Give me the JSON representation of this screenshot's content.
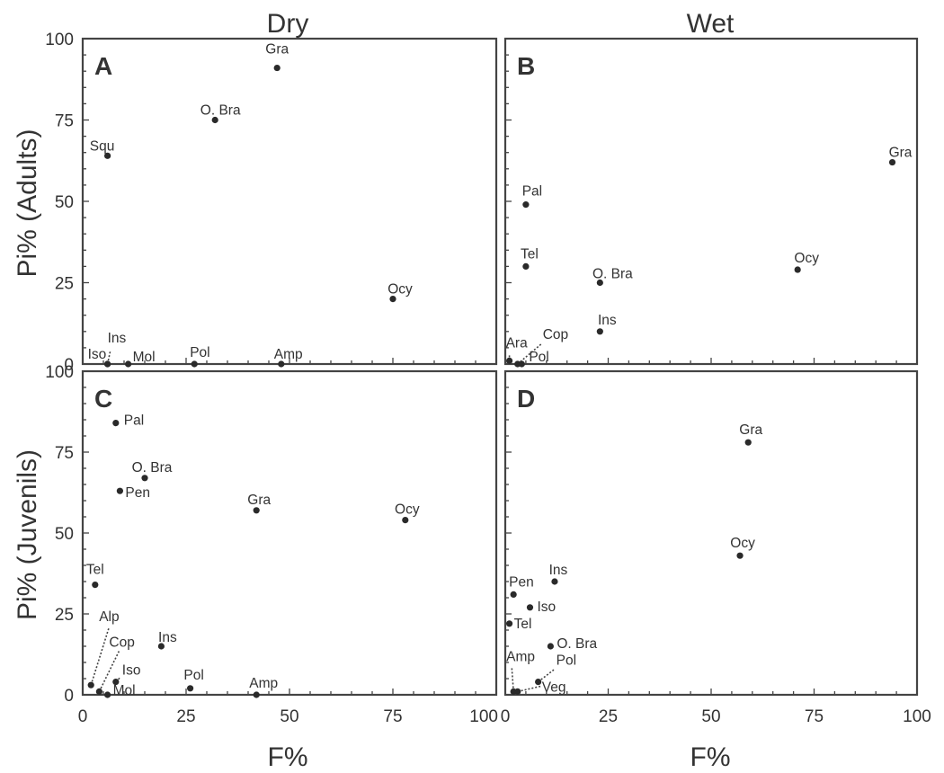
{
  "columns": [
    "Dry",
    "Wet"
  ],
  "row_labels": [
    "Pi% (Adults)",
    "Pi% (Juvenils)"
  ],
  "x_axis_label": "F%",
  "chart_data": [
    {
      "panel": "A",
      "type": "scatter",
      "xlim": [
        0,
        100
      ],
      "ylim": [
        0,
        100
      ],
      "points": [
        {
          "label": "Gra",
          "x": 47,
          "y": 91
        },
        {
          "label": "O. Bra",
          "x": 32,
          "y": 75
        },
        {
          "label": "Squ",
          "x": 6,
          "y": 64
        },
        {
          "label": "Ocy",
          "x": 75,
          "y": 20
        },
        {
          "label": "Iso",
          "x": 6,
          "y": 0
        },
        {
          "label": "Ins",
          "x": 6,
          "y": 0
        },
        {
          "label": "Mol",
          "x": 11,
          "y": 0
        },
        {
          "label": "Pol",
          "x": 27,
          "y": 0
        },
        {
          "label": "Amp",
          "x": 48,
          "y": 0
        }
      ]
    },
    {
      "panel": "B",
      "type": "scatter",
      "xlim": [
        0,
        100
      ],
      "ylim": [
        0,
        100
      ],
      "points": [
        {
          "label": "Gra",
          "x": 94,
          "y": 62
        },
        {
          "label": "Pal",
          "x": 5,
          "y": 49
        },
        {
          "label": "Tel",
          "x": 5,
          "y": 30
        },
        {
          "label": "Ocy",
          "x": 71,
          "y": 29
        },
        {
          "label": "O. Bra",
          "x": 23,
          "y": 25
        },
        {
          "label": "Ins",
          "x": 23,
          "y": 10
        },
        {
          "label": "Ara",
          "x": 1,
          "y": 1
        },
        {
          "label": "Cop",
          "x": 3,
          "y": 0
        },
        {
          "label": "Pol",
          "x": 4,
          "y": 0
        }
      ]
    },
    {
      "panel": "C",
      "type": "scatter",
      "xlim": [
        0,
        100
      ],
      "ylim": [
        0,
        100
      ],
      "points": [
        {
          "label": "Pal",
          "x": 8,
          "y": 84
        },
        {
          "label": "O. Bra",
          "x": 15,
          "y": 67
        },
        {
          "label": "Pen",
          "x": 9,
          "y": 63
        },
        {
          "label": "Gra",
          "x": 42,
          "y": 57
        },
        {
          "label": "Ocy",
          "x": 78,
          "y": 54
        },
        {
          "label": "Tel",
          "x": 3,
          "y": 34
        },
        {
          "label": "Ins",
          "x": 19,
          "y": 15
        },
        {
          "label": "Alp",
          "x": 2,
          "y": 3
        },
        {
          "label": "Cop",
          "x": 4,
          "y": 1
        },
        {
          "label": "Iso",
          "x": 8,
          "y": 4
        },
        {
          "label": "Mol",
          "x": 6,
          "y": 0
        },
        {
          "label": "Pol",
          "x": 26,
          "y": 2
        },
        {
          "label": "Amp",
          "x": 42,
          "y": 0
        }
      ]
    },
    {
      "panel": "D",
      "type": "scatter",
      "xlim": [
        0,
        100
      ],
      "ylim": [
        0,
        100
      ],
      "points": [
        {
          "label": "Gra",
          "x": 59,
          "y": 78
        },
        {
          "label": "Ocy",
          "x": 57,
          "y": 43
        },
        {
          "label": "Ins",
          "x": 12,
          "y": 35
        },
        {
          "label": "Pen",
          "x": 2,
          "y": 31
        },
        {
          "label": "Iso",
          "x": 6,
          "y": 27
        },
        {
          "label": "Tel",
          "x": 1,
          "y": 22
        },
        {
          "label": "O. Bra",
          "x": 11,
          "y": 15
        },
        {
          "label": "Amp",
          "x": 2,
          "y": 1
        },
        {
          "label": "Pol",
          "x": 8,
          "y": 4
        },
        {
          "label": "Veg",
          "x": 3,
          "y": 1
        }
      ]
    }
  ],
  "x_ticks": [
    "0",
    "25",
    "50",
    "75",
    "100"
  ],
  "y_ticks": [
    "0",
    "25",
    "50",
    "75",
    "100"
  ]
}
